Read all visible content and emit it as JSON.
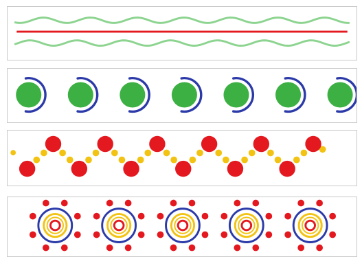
{
  "colors": {
    "green": "#3cb043",
    "light_green": "#8cd48f",
    "red": "#e3191f",
    "blue": "#2b3aa8",
    "yellow": "#f2c313",
    "border": "#c9c9c9",
    "background": "#ffffff"
  },
  "panels": [
    {
      "pattern": "red-straight-line-between-two-green-wavy-lines"
    },
    {
      "pattern": "repeating-green-dot-with-blue-arc",
      "repeat_count": 7
    },
    {
      "pattern": "zigzag-of-red-dots-linked-by-yellow-dots",
      "red_dot_count": 12
    },
    {
      "pattern": "repeating-concentric-rosette",
      "repeat_count": 5
    }
  ]
}
